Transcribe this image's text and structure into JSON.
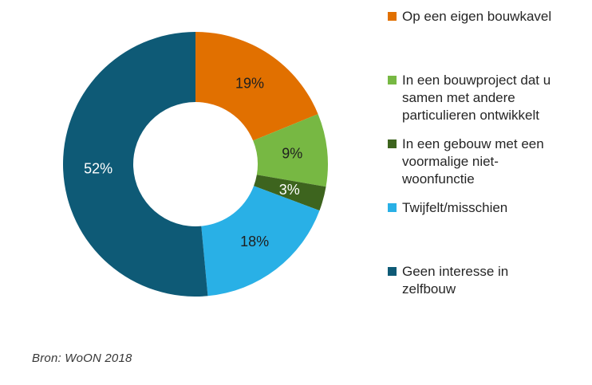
{
  "source": "Bron: WoON 2018",
  "chart_data": {
    "type": "pie",
    "subtype": "donut",
    "title": "",
    "start_angle_deg": 0,
    "direction": "clockwise",
    "hole_ratio": 0.47,
    "legend_position": "right",
    "background_color": "#ffffff",
    "categories": [
      "Op een eigen bouwkavel",
      "In een bouwproject dat u samen met andere particulieren ontwikkelt",
      "In een gebouw met een voormalige niet-woonfunctie",
      "Twijfelt/misschien",
      "Geen interesse in zelfbouw"
    ],
    "values": [
      19,
      9,
      3,
      18,
      52
    ],
    "slices": [
      {
        "category": "Op een eigen bouwkavel",
        "value": 19,
        "label": "19%",
        "color": "#E17000",
        "label_color": "#1f1f1f",
        "legend_lines": [
          "Op een eigen bouwkavel"
        ]
      },
      {
        "category": "In een bouwproject dat u samen met andere particulieren ontwikkelt",
        "value": 9,
        "label": "9%",
        "color": "#77B843",
        "label_color": "#1f1f1f",
        "legend_lines": [
          "In een bouwproject dat u",
          "samen met andere",
          "particulieren ontwikkelt"
        ]
      },
      {
        "category": "In een gebouw met een voormalige niet-woonfunctie",
        "value": 3,
        "label": "3%",
        "color": "#3D641E",
        "label_color": "#ffffff",
        "legend_lines": [
          "In een gebouw met een",
          "voormalige niet-",
          "woonfunctie"
        ]
      },
      {
        "category": "Twijfelt/misschien",
        "value": 18,
        "label": "18%",
        "color": "#29B0E6",
        "label_color": "#1f1f1f",
        "legend_lines": [
          "Twijfelt/misschien"
        ]
      },
      {
        "category": "Geen interesse in zelfbouw",
        "value": 52,
        "label": "52%",
        "color": "#0E5A76",
        "label_color": "#ffffff",
        "legend_lines": [
          "Geen interesse in",
          "zelfbouw"
        ]
      }
    ]
  }
}
